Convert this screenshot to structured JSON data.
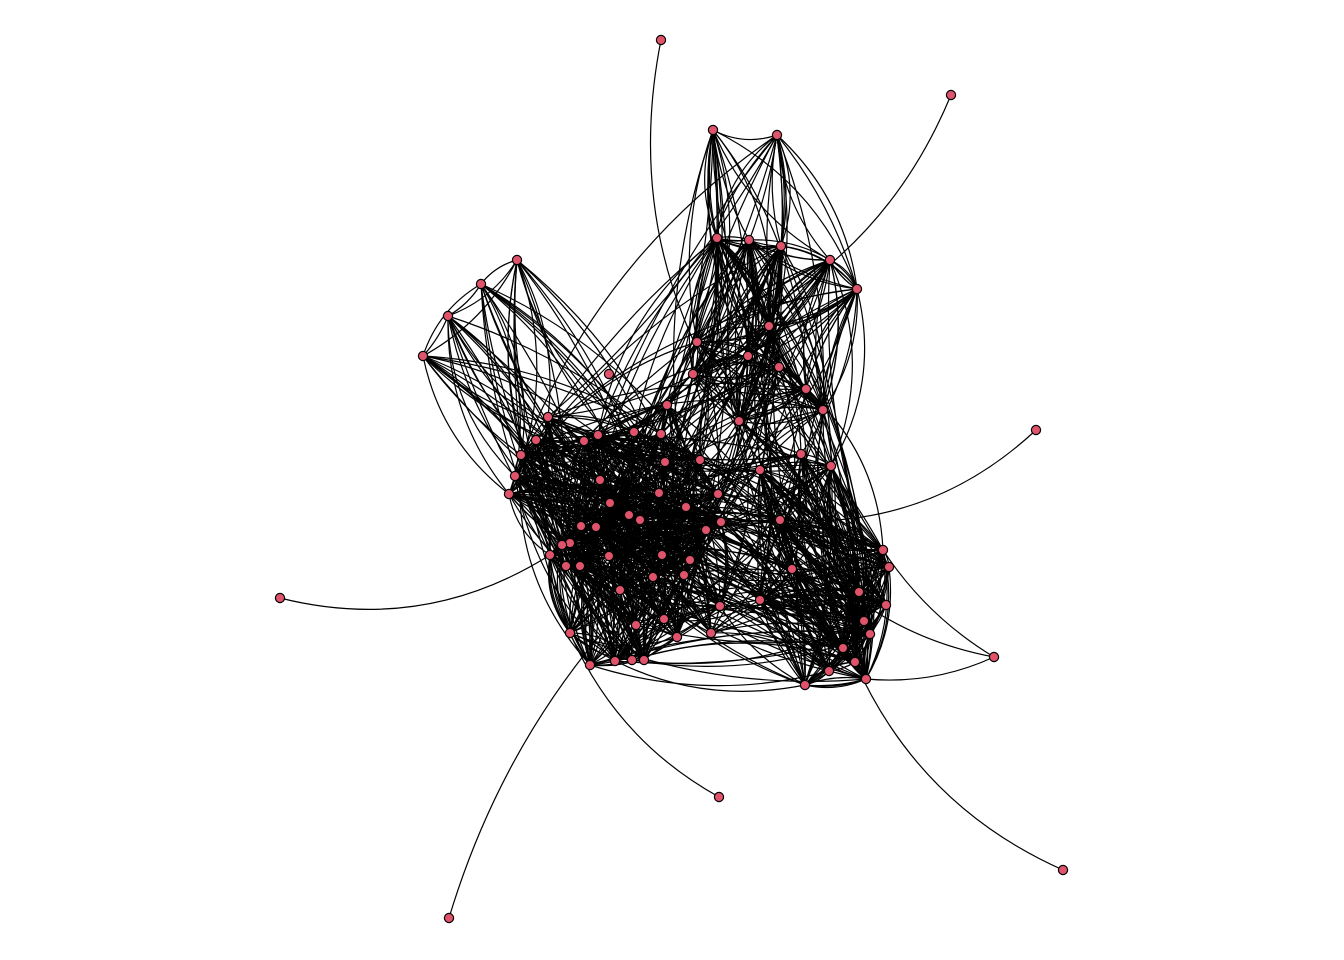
{
  "network": {
    "type": "network-graph",
    "layout": "force-directed",
    "node_color": "#df536b",
    "node_border_color": "#000000",
    "edge_color": "#000000",
    "edge_style": "curved",
    "background": "#ffffff",
    "labels_shown": false,
    "title": "",
    "legend": ""
  }
}
